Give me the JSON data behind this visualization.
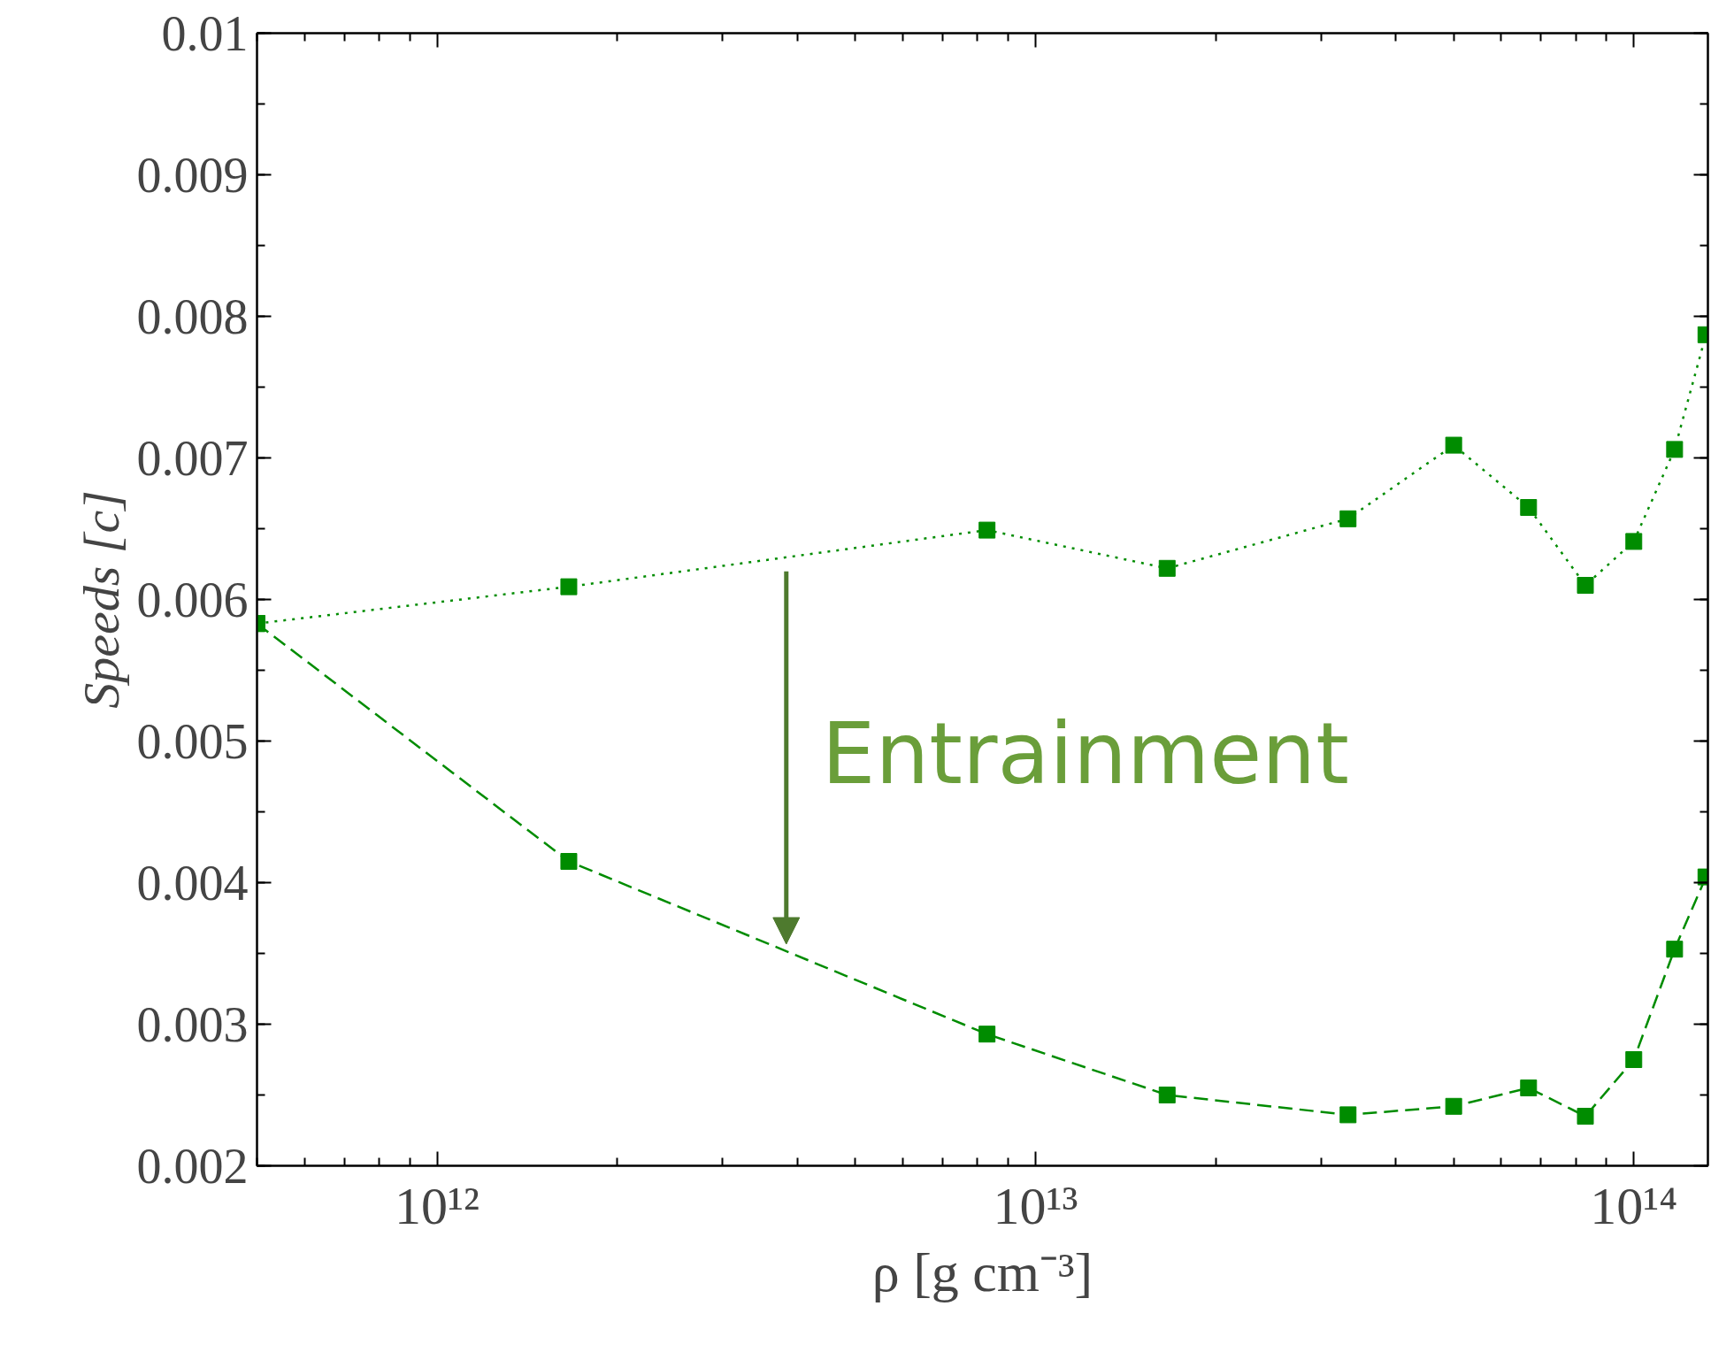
{
  "chart_data": {
    "type": "line",
    "xlabel": "ρ [g cm⁻³]",
    "ylabel": "Speeds [c]",
    "log": "x",
    "grid": false,
    "marker": "square",
    "xlim": [
      500000000000.0,
      133000000000000.0
    ],
    "ylim": [
      0.002,
      0.01
    ],
    "xticks": [
      {
        "value": 1000000000000.0,
        "label": "10¹²"
      },
      {
        "value": 10000000000000.0,
        "label": "10¹³"
      },
      {
        "value": 100000000000000.0,
        "label": "10¹⁴"
      }
    ],
    "yticks": [
      {
        "value": 0.002,
        "label": "0.002"
      },
      {
        "value": 0.003,
        "label": "0.003"
      },
      {
        "value": 0.004,
        "label": "0.004"
      },
      {
        "value": 0.005,
        "label": "0.005"
      },
      {
        "value": 0.006,
        "label": "0.006"
      },
      {
        "value": 0.007,
        "label": "0.007"
      },
      {
        "value": 0.008,
        "label": "0.008"
      },
      {
        "value": 0.009,
        "label": "0.009"
      },
      {
        "value": 0.01,
        "label": "0.01"
      }
    ],
    "x": [
      500000000000.0,
      1660000000000.0,
      8300000000000.0,
      16600000000000.0,
      33300000000000.0,
      50000000000000.0,
      66700000000000.0,
      83000000000000.0,
      100000000000000.0,
      117000000000000.0,
      132000000000000.0
    ],
    "series": [
      {
        "color": "#008c00",
        "line_style": "dotted",
        "values": [
          0.00583,
          0.00609,
          0.00649,
          0.00622,
          0.00657,
          0.00709,
          0.00665,
          0.0061,
          0.00641,
          0.00706,
          0.00787
        ]
      },
      {
        "color": "#008c00",
        "line_style": "dashed",
        "values": [
          0.00583,
          0.00415,
          0.00293,
          0.0025,
          0.00236,
          0.00242,
          0.00255,
          0.00235,
          0.00275,
          0.00353,
          0.00404
        ]
      }
    ],
    "annotations": [
      "Entrainment"
    ]
  }
}
